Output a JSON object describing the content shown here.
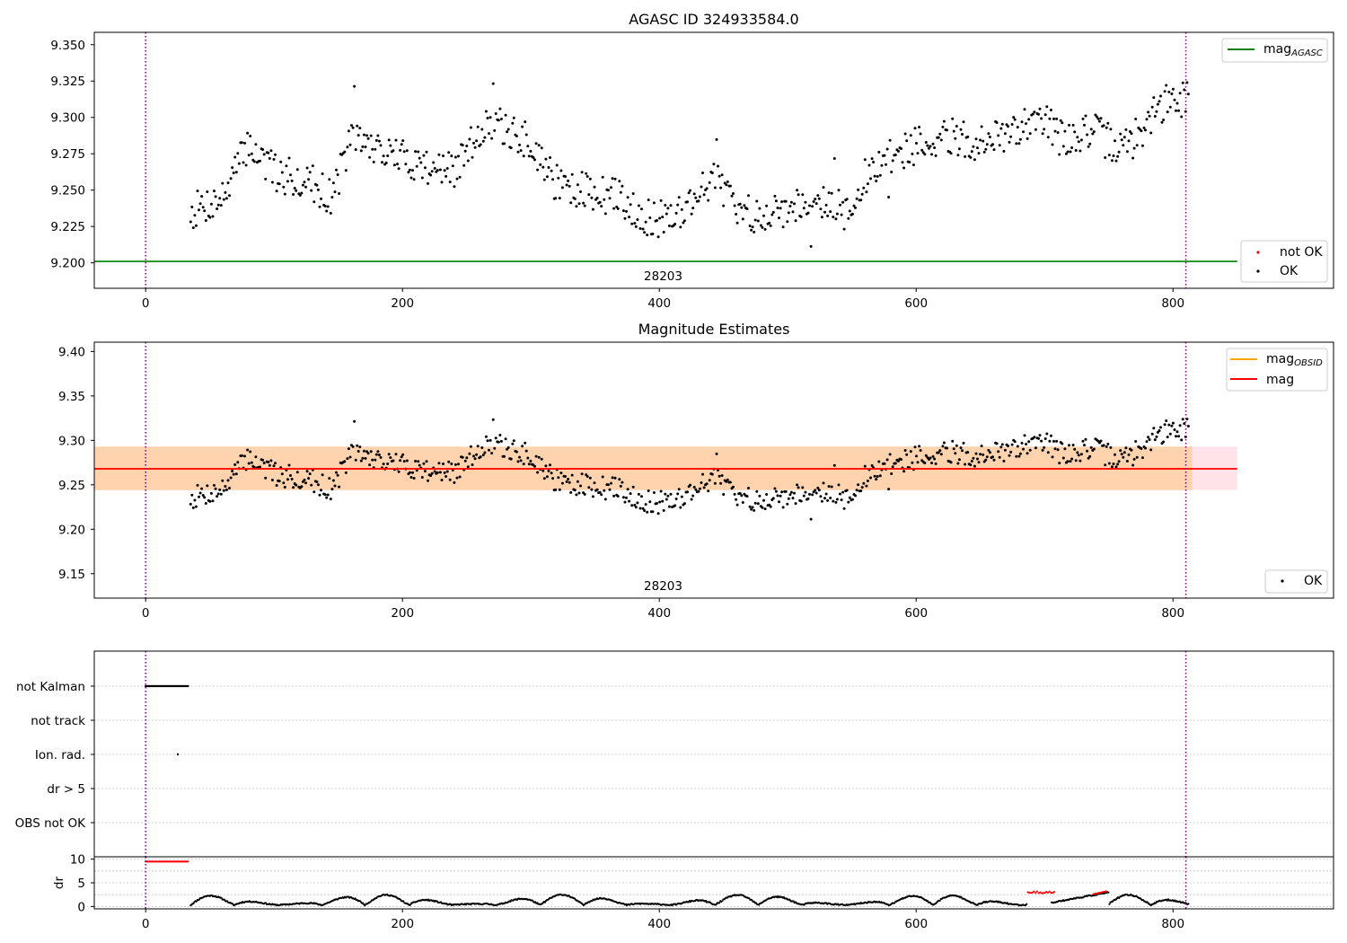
{
  "chart_data": [
    {
      "type": "scatter",
      "title": "AGASC ID 324933584.0",
      "xlim": [
        -40,
        925
      ],
      "ylim": [
        9.1825,
        9.3585
      ],
      "xticks": [
        0,
        200,
        400,
        600,
        800
      ],
      "yticks": [
        9.2,
        9.225,
        9.25,
        9.275,
        9.3,
        9.325,
        9.35
      ],
      "ytick_labels": [
        "9.200",
        "9.225",
        "9.250",
        "9.275",
        "9.300",
        "9.325",
        "9.350"
      ],
      "obsid_label": "28203",
      "obsid_label_x": 403,
      "vlines": [
        0,
        810
      ],
      "hlines": [
        {
          "name": "mag_AGASC",
          "y": 9.201,
          "x_range": [
            -40,
            850
          ],
          "color": "#008000"
        }
      ],
      "legends": [
        {
          "position": "top-right",
          "entries": [
            {
              "base": "mag",
              "sub": "AGASC",
              "kind": "line",
              "color": "#008000"
            }
          ]
        },
        {
          "position": "bottom-right",
          "entries": [
            {
              "label": "not OK",
              "kind": "dot",
              "color": "#ff0000"
            },
            {
              "label": "OK",
              "kind": "dot",
              "color": "#000000"
            }
          ]
        }
      ],
      "series": [
        {
          "name": "OK",
          "color": "#000000",
          "x_range": [
            35,
            812
          ],
          "count": 720,
          "trend": [
            [
              35,
              9.235
            ],
            [
              60,
              9.245
            ],
            [
              80,
              9.282
            ],
            [
              100,
              9.262
            ],
            [
              130,
              9.255
            ],
            [
              145,
              9.245
            ],
            [
              160,
              9.286
            ],
            [
              200,
              9.272
            ],
            [
              240,
              9.262
            ],
            [
              265,
              9.298
            ],
            [
              300,
              9.282
            ],
            [
              320,
              9.255
            ],
            [
              345,
              9.248
            ],
            [
              370,
              9.245
            ],
            [
              395,
              9.228
            ],
            [
              420,
              9.238
            ],
            [
              445,
              9.262
            ],
            [
              460,
              9.232
            ],
            [
              500,
              9.238
            ],
            [
              525,
              9.245
            ],
            [
              550,
              9.232
            ],
            [
              560,
              9.258
            ],
            [
              585,
              9.275
            ],
            [
              620,
              9.288
            ],
            [
              650,
              9.282
            ],
            [
              675,
              9.288
            ],
            [
              695,
              9.305
            ],
            [
              715,
              9.283
            ],
            [
              735,
              9.292
            ],
            [
              760,
              9.278
            ],
            [
              775,
              9.29
            ],
            [
              790,
              9.308
            ],
            [
              812,
              9.315
            ]
          ]
        }
      ]
    },
    {
      "type": "scatter",
      "title": "Magnitude Estimates",
      "xlim": [
        -40,
        925
      ],
      "ylim": [
        9.1225,
        9.4105
      ],
      "xticks": [
        0,
        200,
        400,
        600,
        800
      ],
      "yticks": [
        9.15,
        9.2,
        9.25,
        9.3,
        9.35,
        9.4
      ],
      "ytick_labels": [
        "9.15",
        "9.20",
        "9.25",
        "9.30",
        "9.35",
        "9.40"
      ],
      "obsid_label": "28203",
      "obsid_label_x": 403,
      "vlines": [
        0,
        810
      ],
      "bands": [
        {
          "name": "mag band",
          "y_range": [
            9.244,
            9.293
          ],
          "x_range": [
            -40,
            850
          ],
          "color": "#ffc0cb"
        },
        {
          "name": "mag_OBSID band",
          "y_range": [
            9.244,
            9.293
          ],
          "x_range": [
            -40,
            815
          ],
          "color": "#ffa500"
        }
      ],
      "hlines": [
        {
          "name": "mag_OBSID",
          "y": 9.268,
          "x_range": [
            -40,
            815
          ],
          "color": "#ffa500"
        },
        {
          "name": "mag",
          "y": 9.268,
          "x_range": [
            -40,
            850
          ],
          "color": "#ff0000"
        }
      ],
      "legends": [
        {
          "position": "top-right",
          "entries": [
            {
              "base": "mag",
              "sub": "OBSID",
              "kind": "line",
              "color": "#ffa500"
            },
            {
              "label": "mag",
              "kind": "line",
              "color": "#ff0000"
            }
          ]
        },
        {
          "position": "bottom-right",
          "entries": [
            {
              "label": "OK",
              "kind": "dot",
              "color": "#000000"
            }
          ]
        }
      ]
    },
    {
      "type": "scatter",
      "title": "",
      "xlim": [
        -40,
        925
      ],
      "categories": [
        "not Kalman",
        "not track",
        "Ion. rad.",
        "dr > 5",
        "OBS not OK"
      ],
      "vlines": [
        0,
        810
      ],
      "flags": [
        {
          "name": "not Kalman",
          "x_range": [
            0,
            33
          ],
          "step": 1
        },
        {
          "name": "Ion. rad.",
          "points": [
            25
          ]
        }
      ]
    },
    {
      "type": "scatter",
      "title": "",
      "ylabel": "dr",
      "xlim": [
        -40,
        925
      ],
      "ylim": [
        -0.5,
        10.5
      ],
      "xticks": [
        0,
        200,
        400,
        600,
        800
      ],
      "yticks": [
        0,
        5,
        10
      ],
      "vlines": [
        0,
        810
      ],
      "series": [
        {
          "name": "clipped (dr > 10)",
          "color": "#ff0000",
          "x_range": [
            0,
            33
          ],
          "y": 9.5
        },
        {
          "name": "not OK",
          "color": "#ff0000",
          "x_range": [
            687,
            748
          ]
        },
        {
          "name": "OK",
          "color": "#000000",
          "x_range": [
            35,
            812
          ]
        }
      ]
    }
  ]
}
